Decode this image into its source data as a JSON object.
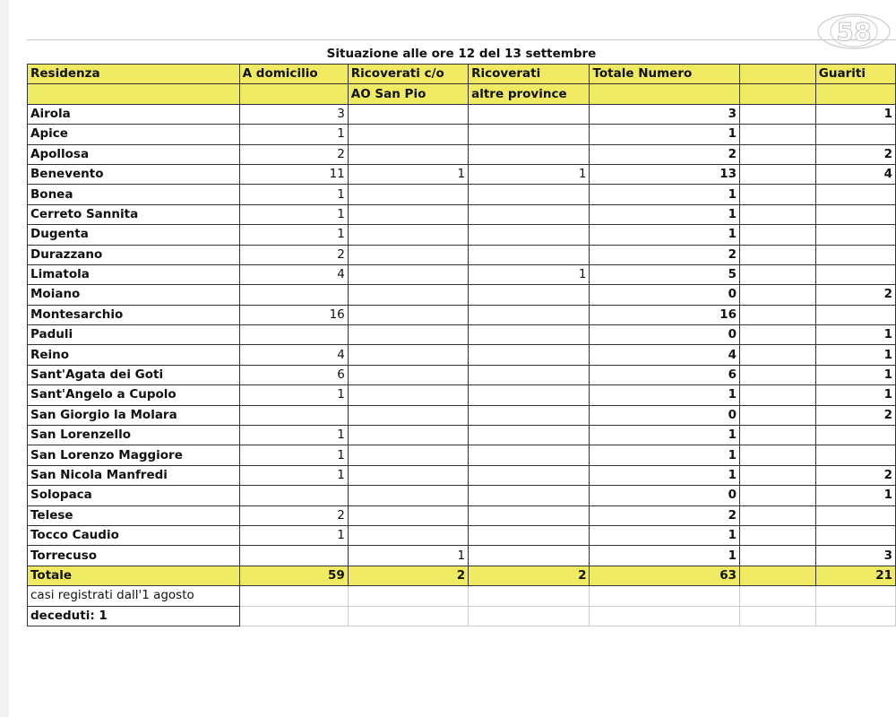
{
  "title": "Situazione alle ore 12 del 13 settembre",
  "header1": [
    "Residenza",
    "A domicilio",
    "Ricoverati c/o",
    "Ricoverati",
    "Totale Numero",
    "",
    "Guariti"
  ],
  "header2": [
    "",
    "",
    "AO San Pio",
    "altre province",
    "",
    "",
    ""
  ],
  "rows": [
    [
      "Airola",
      "3",
      "",
      "",
      "3",
      "",
      "1"
    ],
    [
      "Apice",
      "1",
      "",
      "",
      "1",
      "",
      ""
    ],
    [
      "Apollosa",
      "2",
      "",
      "",
      "2",
      "",
      "2"
    ],
    [
      "Benevento",
      "11",
      "1",
      "1",
      "13",
      "",
      "4"
    ],
    [
      "Bonea",
      "1",
      "",
      "",
      "1",
      "",
      ""
    ],
    [
      "Cerreto Sannita",
      "1",
      "",
      "",
      "1",
      "",
      ""
    ],
    [
      "Dugenta",
      "1",
      "",
      "",
      "1",
      "",
      ""
    ],
    [
      "Durazzano",
      "2",
      "",
      "",
      "2",
      "",
      ""
    ],
    [
      "Limatola",
      "4",
      "",
      "1",
      "5",
      "",
      ""
    ],
    [
      "Moiano",
      "",
      "",
      "",
      "0",
      "",
      "2"
    ],
    [
      "Montesarchio",
      "16",
      "",
      "",
      "16",
      "",
      ""
    ],
    [
      "Paduli",
      "",
      "",
      "",
      "0",
      "",
      "1"
    ],
    [
      "Reino",
      "4",
      "",
      "",
      "4",
      "",
      "1"
    ],
    [
      "Sant'Agata dei Goti",
      "6",
      "",
      "",
      "6",
      "",
      "1"
    ],
    [
      "Sant'Angelo a Cupolo",
      "1",
      "",
      "",
      "1",
      "",
      "1"
    ],
    [
      "San Giorgio la Molara",
      "",
      "",
      "",
      "0",
      "",
      "2"
    ],
    [
      "San Lorenzello",
      "1",
      "",
      "",
      "1",
      "",
      ""
    ],
    [
      "San Lorenzo Maggiore",
      "1",
      "",
      "",
      "1",
      "",
      ""
    ],
    [
      "San Nicola Manfredi",
      "1",
      "",
      "",
      "1",
      "",
      "2"
    ],
    [
      "Solopaca",
      "",
      "",
      "",
      "0",
      "",
      "1"
    ],
    [
      "Telese",
      "2",
      "",
      "",
      "2",
      "",
      ""
    ],
    [
      "Tocco Caudio",
      "1",
      "",
      "",
      "1",
      "",
      ""
    ],
    [
      "Torrecuso",
      "",
      "1",
      "",
      "1",
      "",
      "3"
    ]
  ],
  "total": [
    "Totale",
    "59",
    "2",
    "2",
    "63",
    "",
    "21"
  ],
  "footer": [
    "casi registrati dall'1 agosto",
    "deceduti: 1"
  ],
  "logo": {
    "text": "58",
    "icon": "channel-58-logo"
  },
  "colors": {
    "header_yellow": "#f0ea62"
  }
}
